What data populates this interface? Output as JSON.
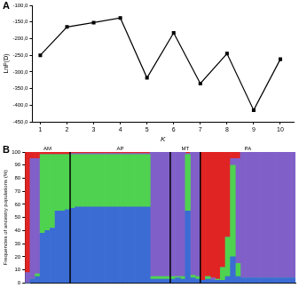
{
  "chart_data": [
    {
      "type": "line",
      "title": "A",
      "x_label": "K",
      "y_label": "LnP(D)",
      "x": [
        1,
        2,
        3,
        4,
        5,
        6,
        7,
        8,
        9,
        10
      ],
      "values": [
        -250,
        -165,
        -152,
        -138,
        -318,
        -183,
        -335,
        -245,
        -415,
        -262
      ],
      "color": "#000000",
      "marker": "square",
      "line_style": "solid",
      "xlim": [
        0.7,
        10.5
      ],
      "xticks": [
        1,
        2,
        3,
        4,
        5,
        6,
        7,
        8,
        9,
        10
      ],
      "ylim": [
        -450,
        -100
      ],
      "yticks": [
        {
          "value": -450,
          "label": "-450,0"
        },
        {
          "value": -400,
          "label": "-400,0"
        },
        {
          "value": -350,
          "label": "-350,0"
        },
        {
          "value": -300,
          "label": "-300,0"
        },
        {
          "value": -250,
          "label": "-250,0"
        },
        {
          "value": -200,
          "label": "-200,0"
        },
        {
          "value": -150,
          "label": "-150,0"
        },
        {
          "value": -100,
          "label": "-100,0"
        }
      ],
      "grid": false
    },
    {
      "type": "bar",
      "title": "B",
      "stacked": true,
      "grid": false,
      "tick_labels": "y",
      "y_label": "Frequencies of ancestry populations (%)",
      "categories": [
        null,
        null,
        null,
        null,
        null,
        null,
        null,
        null,
        null,
        null,
        null,
        null,
        null,
        null,
        null,
        null,
        null,
        null,
        null,
        null,
        null,
        null,
        null,
        null,
        null,
        null,
        null,
        null,
        null,
        null,
        null,
        null,
        null,
        null,
        null,
        null,
        null,
        null,
        null,
        null,
        null,
        null,
        null,
        null,
        null,
        null,
        null,
        null,
        null,
        null,
        null,
        null,
        null,
        null
      ],
      "groups": [
        {
          "name": "AM",
          "count": 9
        },
        {
          "name": "AP",
          "count": 20
        },
        {
          "name": "MT",
          "count": 6
        },
        {
          "name": "PA",
          "count": 19
        }
      ],
      "ylim": [
        0,
        100
      ],
      "yticks": [
        0,
        10,
        20,
        30,
        40,
        50,
        60,
        70,
        80,
        90,
        100
      ],
      "series": [
        {
          "color": "#3b6cd4",
          "values": [
            0,
            3,
            5,
            38,
            40,
            42,
            55,
            55,
            56,
            57,
            58,
            58,
            58,
            58,
            58,
            58,
            58,
            58,
            58,
            58,
            58,
            58,
            58,
            58,
            58,
            3,
            3,
            3,
            3,
            3,
            4,
            3,
            55,
            4,
            3,
            2,
            3,
            2,
            2,
            2,
            5,
            20,
            5,
            4,
            4,
            4,
            4,
            4,
            4,
            4,
            4,
            4,
            4,
            4
          ]
        },
        {
          "color": "#4fd24f",
          "values": [
            0,
            0,
            2,
            60,
            58,
            56,
            43,
            43,
            42,
            41,
            40,
            40,
            40,
            40,
            40,
            40,
            40,
            40,
            40,
            40,
            40,
            40,
            40,
            40,
            40,
            2,
            2,
            2,
            2,
            2,
            1,
            2,
            43,
            2,
            2,
            0,
            2,
            0,
            1,
            10,
            30,
            70,
            10,
            0,
            0,
            0,
            0,
            0,
            0,
            0,
            0,
            0,
            0,
            0
          ]
        },
        {
          "color": "#8060c8",
          "values": [
            8,
            92,
            88,
            0,
            0,
            0,
            0,
            0,
            0,
            1,
            1,
            1,
            1,
            1,
            1,
            1,
            1,
            1,
            1,
            1,
            1,
            1,
            1,
            1,
            1,
            95,
            95,
            95,
            95,
            95,
            95,
            95,
            1,
            94,
            95,
            0,
            0,
            2,
            0,
            0,
            0,
            5,
            80,
            96,
            96,
            96,
            96,
            96,
            96,
            96,
            96,
            96,
            96,
            96
          ]
        },
        {
          "color": "#e02424",
          "values": [
            92,
            5,
            5,
            2,
            2,
            2,
            2,
            2,
            2,
            1,
            1,
            1,
            1,
            1,
            1,
            1,
            1,
            1,
            1,
            1,
            1,
            1,
            1,
            1,
            1,
            0,
            0,
            0,
            0,
            0,
            0,
            0,
            1,
            0,
            0,
            98,
            95,
            96,
            97,
            88,
            65,
            5,
            5,
            0,
            0,
            0,
            0,
            0,
            0,
            0,
            0,
            0,
            0,
            0
          ]
        }
      ]
    }
  ]
}
